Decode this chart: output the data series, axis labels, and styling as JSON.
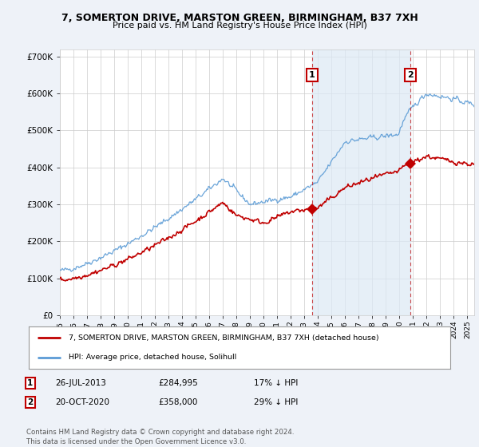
{
  "title": "7, SOMERTON DRIVE, MARSTON GREEN, BIRMINGHAM, B37 7XH",
  "subtitle": "Price paid vs. HM Land Registry's House Price Index (HPI)",
  "ylim": [
    0,
    720000
  ],
  "yticks": [
    0,
    100000,
    200000,
    300000,
    400000,
    500000,
    600000,
    700000
  ],
  "ytick_labels": [
    "£0",
    "£100K",
    "£200K",
    "£300K",
    "£400K",
    "£500K",
    "£600K",
    "£700K"
  ],
  "background_color": "#eef2f8",
  "plot_bg_color": "#ffffff",
  "grid_color": "#cccccc",
  "hpi_color": "#5b9bd5",
  "hpi_fill_color": "#dce9f5",
  "price_color": "#c00000",
  "marker1_year": 2013.56,
  "marker2_year": 2020.8,
  "marker1_price": 284995,
  "marker2_price": 358000,
  "annotation1": "1",
  "annotation2": "2",
  "legend_label1": "7, SOMERTON DRIVE, MARSTON GREEN, BIRMINGHAM, B37 7XH (detached house)",
  "legend_label2": "HPI: Average price, detached house, Solihull",
  "table_row1": [
    "1",
    "26-JUL-2013",
    "£284,995",
    "17% ↓ HPI"
  ],
  "table_row2": [
    "2",
    "20-OCT-2020",
    "£358,000",
    "29% ↓ HPI"
  ],
  "footnote": "Contains HM Land Registry data © Crown copyright and database right 2024.\nThis data is licensed under the Open Government Licence v3.0.",
  "x_start_year": 1995,
  "x_end_year": 2025
}
